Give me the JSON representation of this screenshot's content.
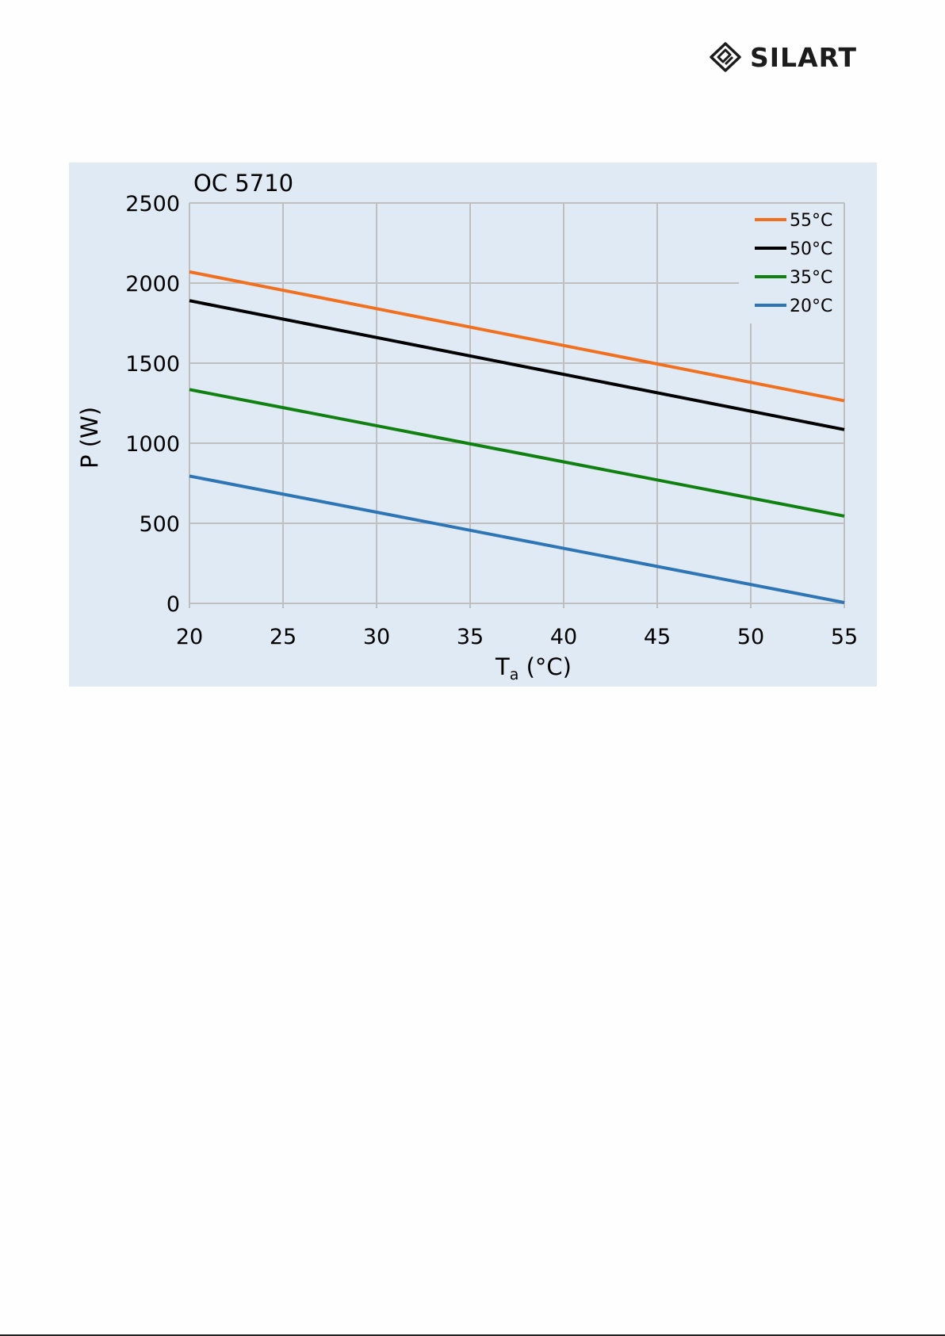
{
  "logo": {
    "text": "SILART",
    "mark": "silart-logo-mark"
  },
  "chart_data": {
    "type": "line",
    "title": "OC 5710",
    "xlabel_main": "T",
    "xlabel_sub": "a",
    "xlabel_unit": " (°C)",
    "ylabel": "P (W)",
    "xlim": [
      20,
      55
    ],
    "ylim": [
      0,
      2500
    ],
    "x_ticks": [
      20,
      25,
      30,
      35,
      40,
      45,
      50,
      55
    ],
    "y_ticks": [
      0,
      500,
      1000,
      1500,
      2000,
      2500
    ],
    "grid": true,
    "legend_position": "top-right",
    "series": [
      {
        "name": "55°C",
        "color": "#f07020",
        "x": [
          20,
          55
        ],
        "y": [
          2070,
          1265
        ]
      },
      {
        "name": "50°C",
        "color": "#000000",
        "x": [
          20,
          55
        ],
        "y": [
          1890,
          1085
        ]
      },
      {
        "name": "35°C",
        "color": "#108010",
        "x": [
          20,
          55
        ],
        "y": [
          1335,
          545
        ]
      },
      {
        "name": "20°C",
        "color": "#2e75b6",
        "x": [
          20,
          55
        ],
        "y": [
          795,
          5
        ]
      }
    ]
  }
}
